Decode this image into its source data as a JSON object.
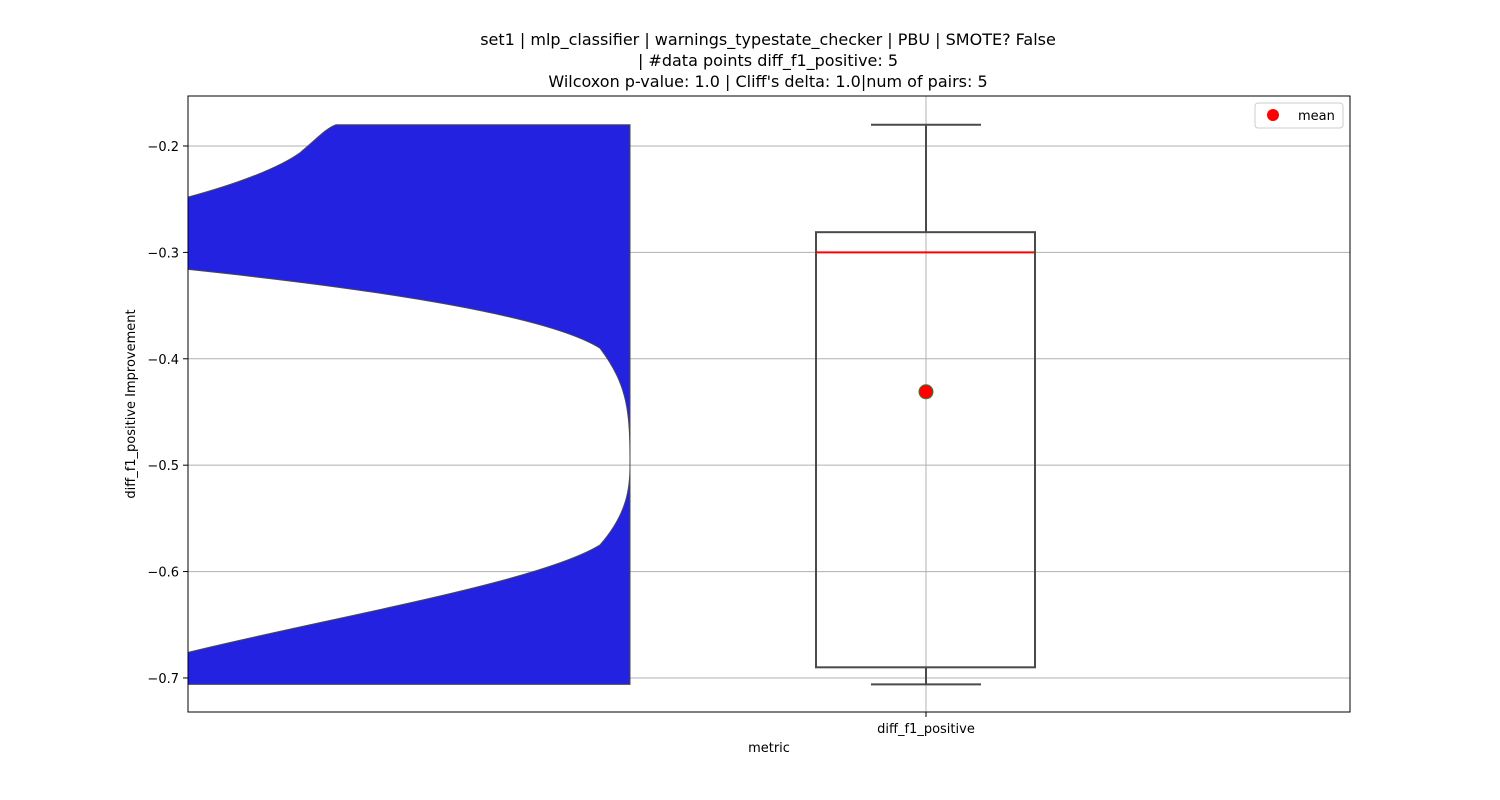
{
  "chart_data": {
    "type": "violin+box",
    "title_lines": [
      "set1 | mlp_classifier | warnings_typestate_checker | PBU | SMOTE? False",
      "| #data points diff_f1_positive: 5",
      "Wilcoxon p-value: 1.0 | Cliff's delta: 1.0|num of pairs: 5"
    ],
    "xlabel": "metric",
    "ylabel": "diff_f1_positive Improvement",
    "categories": [
      "diff_f1_positive"
    ],
    "ylim": [
      -0.732,
      -0.153
    ],
    "yticks": [
      -0.2,
      -0.3,
      -0.4,
      -0.5,
      -0.6,
      -0.7
    ],
    "ytick_labels": [
      "−0.2",
      "−0.3",
      "−0.4",
      "−0.5",
      "−0.6",
      "−0.7"
    ],
    "grid": true,
    "box": {
      "whisker_low": -0.706,
      "q1": -0.69,
      "median": -0.3,
      "q3": -0.281,
      "whisker_high": -0.18,
      "mean": -0.431
    },
    "violin": {
      "min": -0.706,
      "max": -0.18,
      "color": "#2222e0",
      "left_edge_top_y": -0.248,
      "left_edge_bottom_y": -0.676
    },
    "legend": {
      "entries": [
        {
          "label": "mean",
          "marker": "circle",
          "color": "#ff0000"
        }
      ],
      "position": "top-right"
    },
    "colors": {
      "violin": "#2222e0",
      "median": "#ff0000",
      "mean": "#ff0000",
      "mean_edge": "#3a7a3a",
      "box_edge": "#4a4a4a",
      "grid": "#b0b0b0"
    }
  }
}
